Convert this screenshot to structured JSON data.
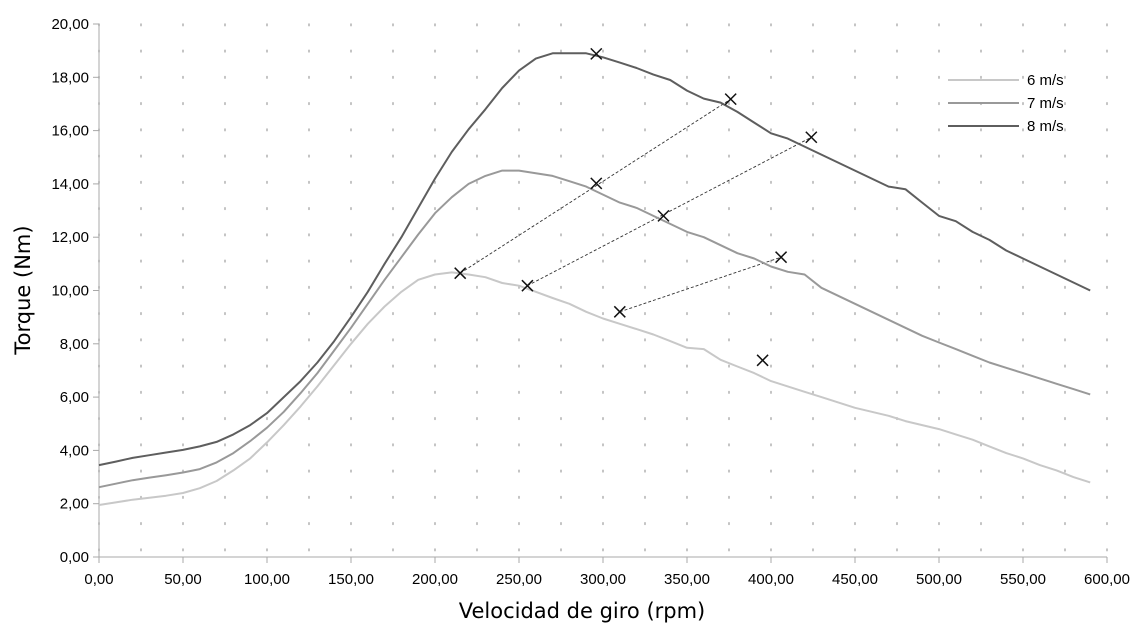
{
  "chart_data": {
    "type": "line",
    "xlabel": "Velocidad de giro (rpm)",
    "ylabel": "Torque (Nm)",
    "xlim": [
      0,
      600
    ],
    "ylim": [
      0,
      20
    ],
    "x_ticks": [
      "0,00",
      "50,00",
      "100,00",
      "150,00",
      "200,00",
      "250,00",
      "300,00",
      "350,00",
      "400,00",
      "450,00",
      "500,00",
      "550,00",
      "600,00"
    ],
    "y_ticks": [
      "0,00",
      "2,00",
      "4,00",
      "6,00",
      "8,00",
      "10,00",
      "12,00",
      "14,00",
      "16,00",
      "18,00",
      "20,00"
    ],
    "grid": "dotted",
    "legend_position": "top-right",
    "series": [
      {
        "name": "6 m/s",
        "color": "#c8c8c8",
        "points": [
          [
            0,
            1.95
          ],
          [
            10,
            2.05
          ],
          [
            20,
            2.15
          ],
          [
            30,
            2.22
          ],
          [
            40,
            2.3
          ],
          [
            50,
            2.4
          ],
          [
            60,
            2.58
          ],
          [
            70,
            2.85
          ],
          [
            80,
            3.25
          ],
          [
            90,
            3.7
          ],
          [
            100,
            4.3
          ],
          [
            110,
            4.95
          ],
          [
            120,
            5.65
          ],
          [
            130,
            6.4
          ],
          [
            140,
            7.2
          ],
          [
            150,
            8.0
          ],
          [
            160,
            8.75
          ],
          [
            170,
            9.4
          ],
          [
            180,
            9.95
          ],
          [
            190,
            10.4
          ],
          [
            200,
            10.6
          ],
          [
            210,
            10.68
          ],
          [
            220,
            10.6
          ],
          [
            230,
            10.5
          ],
          [
            240,
            10.28
          ],
          [
            250,
            10.18
          ],
          [
            260,
            9.95
          ],
          [
            270,
            9.72
          ],
          [
            280,
            9.5
          ],
          [
            290,
            9.2
          ],
          [
            300,
            8.95
          ],
          [
            310,
            8.75
          ],
          [
            320,
            8.55
          ],
          [
            330,
            8.35
          ],
          [
            340,
            8.1
          ],
          [
            350,
            7.85
          ],
          [
            360,
            7.8
          ],
          [
            370,
            7.4
          ],
          [
            380,
            7.15
          ],
          [
            390,
            6.9
          ],
          [
            400,
            6.6
          ],
          [
            410,
            6.4
          ],
          [
            420,
            6.2
          ],
          [
            430,
            6.0
          ],
          [
            440,
            5.8
          ],
          [
            450,
            5.6
          ],
          [
            460,
            5.45
          ],
          [
            470,
            5.3
          ],
          [
            480,
            5.1
          ],
          [
            490,
            4.95
          ],
          [
            500,
            4.8
          ],
          [
            510,
            4.6
          ],
          [
            520,
            4.4
          ],
          [
            530,
            4.15
          ],
          [
            540,
            3.9
          ],
          [
            550,
            3.7
          ],
          [
            560,
            3.45
          ],
          [
            570,
            3.25
          ],
          [
            580,
            3.0
          ],
          [
            590,
            2.8
          ]
        ]
      },
      {
        "name": "7 m/s",
        "color": "#999999",
        "points": [
          [
            0,
            2.62
          ],
          [
            10,
            2.75
          ],
          [
            20,
            2.88
          ],
          [
            30,
            2.98
          ],
          [
            40,
            3.07
          ],
          [
            50,
            3.17
          ],
          [
            60,
            3.3
          ],
          [
            70,
            3.55
          ],
          [
            80,
            3.9
          ],
          [
            90,
            4.35
          ],
          [
            100,
            4.85
          ],
          [
            110,
            5.45
          ],
          [
            120,
            6.15
          ],
          [
            130,
            6.9
          ],
          [
            140,
            7.75
          ],
          [
            150,
            8.6
          ],
          [
            160,
            9.5
          ],
          [
            170,
            10.4
          ],
          [
            180,
            11.25
          ],
          [
            190,
            12.1
          ],
          [
            200,
            12.9
          ],
          [
            210,
            13.5
          ],
          [
            220,
            14.0
          ],
          [
            230,
            14.3
          ],
          [
            240,
            14.5
          ],
          [
            250,
            14.5
          ],
          [
            260,
            14.4
          ],
          [
            270,
            14.3
          ],
          [
            280,
            14.1
          ],
          [
            290,
            13.9
          ],
          [
            300,
            13.6
          ],
          [
            310,
            13.3
          ],
          [
            320,
            13.1
          ],
          [
            330,
            12.8
          ],
          [
            340,
            12.5
          ],
          [
            350,
            12.2
          ],
          [
            360,
            12.0
          ],
          [
            370,
            11.7
          ],
          [
            380,
            11.4
          ],
          [
            390,
            11.2
          ],
          [
            400,
            10.9
          ],
          [
            410,
            10.7
          ],
          [
            420,
            10.6
          ],
          [
            430,
            10.1
          ],
          [
            440,
            9.8
          ],
          [
            450,
            9.5
          ],
          [
            460,
            9.2
          ],
          [
            470,
            8.9
          ],
          [
            480,
            8.6
          ],
          [
            490,
            8.3
          ],
          [
            500,
            8.05
          ],
          [
            510,
            7.8
          ],
          [
            520,
            7.55
          ],
          [
            530,
            7.3
          ],
          [
            540,
            7.1
          ],
          [
            550,
            6.9
          ],
          [
            560,
            6.7
          ],
          [
            570,
            6.5
          ],
          [
            580,
            6.3
          ],
          [
            590,
            6.1
          ]
        ]
      },
      {
        "name": "8 m/s",
        "color": "#5e5e5e",
        "points": [
          [
            0,
            3.45
          ],
          [
            10,
            3.58
          ],
          [
            20,
            3.72
          ],
          [
            30,
            3.82
          ],
          [
            40,
            3.92
          ],
          [
            50,
            4.02
          ],
          [
            60,
            4.15
          ],
          [
            70,
            4.32
          ],
          [
            80,
            4.6
          ],
          [
            90,
            4.95
          ],
          [
            100,
            5.4
          ],
          [
            110,
            6.0
          ],
          [
            120,
            6.6
          ],
          [
            130,
            7.3
          ],
          [
            140,
            8.1
          ],
          [
            150,
            9.0
          ],
          [
            160,
            9.95
          ],
          [
            170,
            11.0
          ],
          [
            180,
            12.0
          ],
          [
            190,
            13.1
          ],
          [
            200,
            14.2
          ],
          [
            210,
            15.2
          ],
          [
            220,
            16.05
          ],
          [
            230,
            16.8
          ],
          [
            240,
            17.6
          ],
          [
            250,
            18.25
          ],
          [
            260,
            18.7
          ],
          [
            270,
            18.9
          ],
          [
            280,
            18.9
          ],
          [
            290,
            18.9
          ],
          [
            300,
            18.75
          ],
          [
            310,
            18.55
          ],
          [
            320,
            18.35
          ],
          [
            330,
            18.1
          ],
          [
            340,
            17.9
          ],
          [
            350,
            17.5
          ],
          [
            360,
            17.2
          ],
          [
            370,
            17.05
          ],
          [
            380,
            16.7
          ],
          [
            390,
            16.3
          ],
          [
            400,
            15.9
          ],
          [
            410,
            15.7
          ],
          [
            420,
            15.4
          ],
          [
            430,
            15.1
          ],
          [
            440,
            14.8
          ],
          [
            450,
            14.5
          ],
          [
            460,
            14.2
          ],
          [
            470,
            13.9
          ],
          [
            480,
            13.8
          ],
          [
            490,
            13.3
          ],
          [
            500,
            12.8
          ],
          [
            510,
            12.6
          ],
          [
            520,
            12.2
          ],
          [
            530,
            11.9
          ],
          [
            540,
            11.5
          ],
          [
            550,
            11.2
          ],
          [
            560,
            10.9
          ],
          [
            570,
            10.6
          ],
          [
            580,
            10.3
          ],
          [
            590,
            10.0
          ]
        ]
      }
    ],
    "markers": [
      [
        215,
        10.65
      ],
      [
        255,
        10.18
      ],
      [
        310,
        9.2
      ],
      [
        296,
        14.02
      ],
      [
        336,
        12.8
      ],
      [
        406,
        11.25
      ],
      [
        296,
        18.88
      ],
      [
        376,
        17.18
      ],
      [
        424,
        15.75
      ],
      [
        395,
        7.38
      ]
    ],
    "dashed_connectors": [
      [
        [
          215,
          10.65
        ],
        [
          376,
          17.18
        ]
      ],
      [
        [
          255,
          10.18
        ],
        [
          424,
          15.75
        ]
      ],
      [
        [
          310,
          9.2
        ],
        [
          406,
          11.25
        ]
      ]
    ]
  }
}
